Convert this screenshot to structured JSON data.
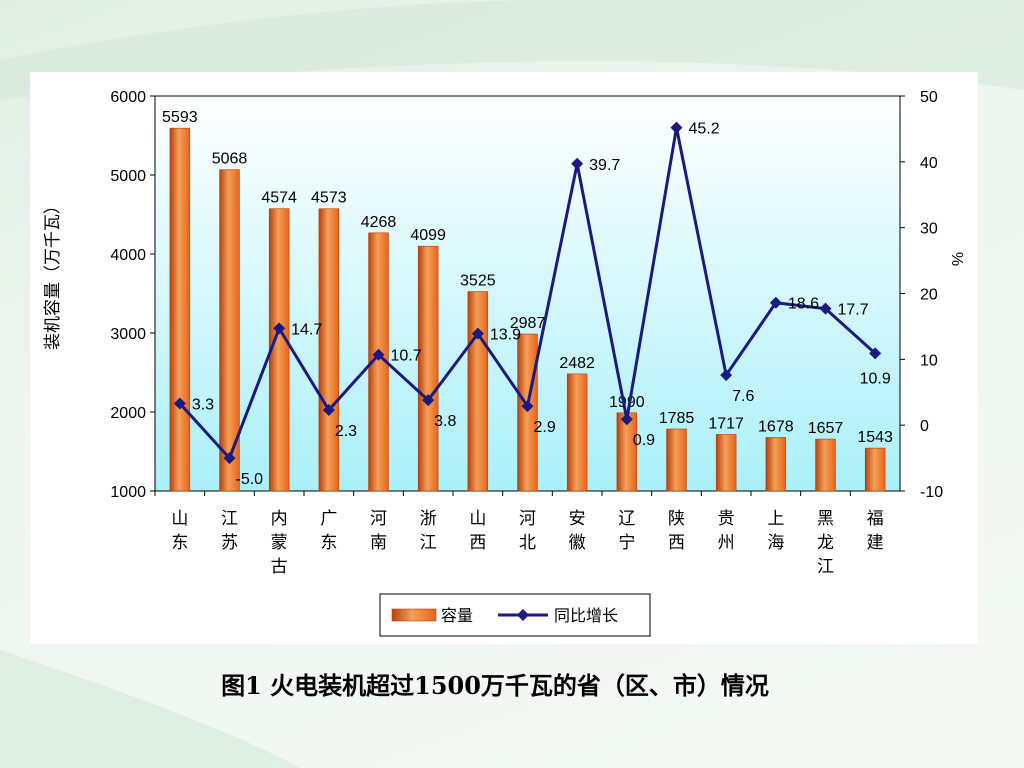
{
  "caption": "图1  火电装机超过1500万千瓦的省（区、市）情况",
  "chart_data": {
    "type": "bar",
    "categories": [
      [
        "山",
        "东"
      ],
      [
        "江",
        "苏"
      ],
      [
        "内",
        "蒙",
        "古"
      ],
      [
        "广",
        "东"
      ],
      [
        "河",
        "南"
      ],
      [
        "浙",
        "江"
      ],
      [
        "山",
        "西"
      ],
      [
        "河",
        "北"
      ],
      [
        "安",
        "徽"
      ],
      [
        "辽",
        "宁"
      ],
      [
        "陕",
        "西"
      ],
      [
        "贵",
        "州"
      ],
      [
        "上",
        "海"
      ],
      [
        "黑",
        "龙",
        "江"
      ],
      [
        "福",
        "建"
      ]
    ],
    "series": [
      {
        "name": "容量",
        "type": "bar",
        "axis": "left",
        "values": [
          5593,
          5068,
          4574,
          4573,
          4268,
          4099,
          3525,
          2987,
          2482,
          1990,
          1785,
          1717,
          1678,
          1657,
          1543
        ],
        "labels": [
          "5593",
          "5068",
          "4574",
          "4573",
          "4268",
          "4099",
          "3525",
          "2987",
          "2482",
          "1990",
          "1785",
          "1717",
          "1678",
          "1657",
          "1543"
        ]
      },
      {
        "name": "同比增长",
        "type": "line",
        "axis": "right",
        "values": [
          3.3,
          -5.0,
          14.7,
          2.3,
          10.7,
          3.8,
          13.9,
          2.9,
          39.7,
          0.9,
          45.2,
          7.6,
          18.6,
          17.7,
          10.9
        ],
        "labels": [
          "3.3",
          "-5.0",
          "14.7",
          "2.3",
          "10.7",
          "3.8",
          "13.9",
          "2.9",
          "39.7",
          "0.9",
          "45.2",
          "7.6",
          "18.6",
          "17.7",
          "10.9"
        ]
      }
    ],
    "ylabel": "装机容量（万千瓦）",
    "y2label": "%",
    "ylim": [
      1000,
      6000
    ],
    "y2lim": [
      -10,
      50
    ],
    "yticks": [
      "1000",
      "2000",
      "3000",
      "4000",
      "5000",
      "6000"
    ],
    "y2ticks": [
      "-10",
      "0",
      "10",
      "20",
      "30",
      "40",
      "50"
    ],
    "legend_position": "bottom",
    "grid": false,
    "colors": {
      "bar": "#e8641a",
      "bar_dark": "#b8400a",
      "bar_light": "#f3a05a",
      "line": "#1a1a80",
      "plot_bg_top": "#ffffff",
      "plot_bg_bottom": "#aaf0f8"
    }
  }
}
